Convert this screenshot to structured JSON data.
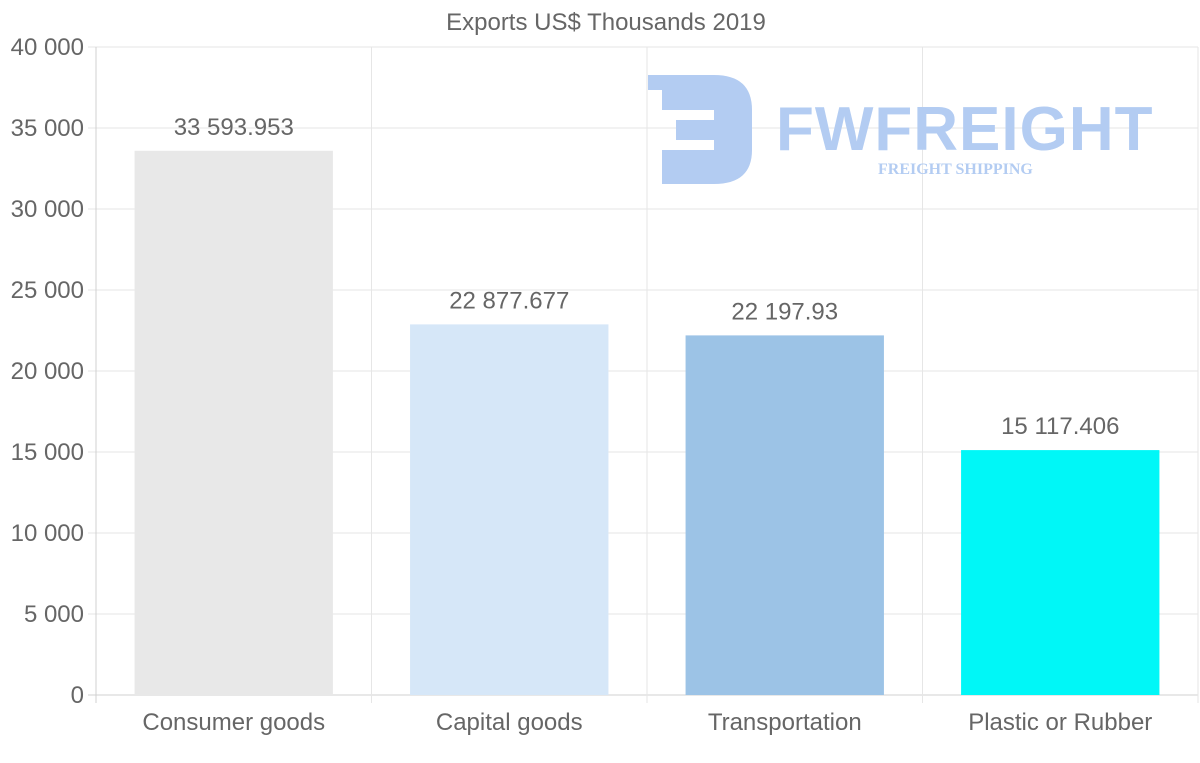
{
  "chart_data": {
    "type": "bar",
    "title": "Exports US$ Thousands 2019",
    "categories": [
      "Consumer goods",
      "Capital goods",
      "Transportation",
      "Plastic or Rubber"
    ],
    "values": [
      33593.953,
      22877.677,
      22197.93,
      15117.406
    ],
    "value_labels": [
      "33 593.953",
      "22 877.677",
      "22 197.93",
      "15 117.406"
    ],
    "bar_colors": [
      "#e8e8e8",
      "#d6e7f8",
      "#9cc3e6",
      "#00f7f7"
    ],
    "ylim": [
      0,
      40000
    ],
    "yticks": [
      0,
      5000,
      10000,
      15000,
      20000,
      25000,
      30000,
      35000,
      40000
    ],
    "ytick_labels": [
      "0",
      "5 000",
      "10 000",
      "15 000",
      "20 000",
      "25 000",
      "30 000",
      "35 000",
      "40 000"
    ],
    "xlabel": "",
    "ylabel": "",
    "grid": true
  },
  "watermark": {
    "name": "FWFREIGHT",
    "tagline": "FREIGHT SHIPPING",
    "color": "#b3ccf2"
  }
}
